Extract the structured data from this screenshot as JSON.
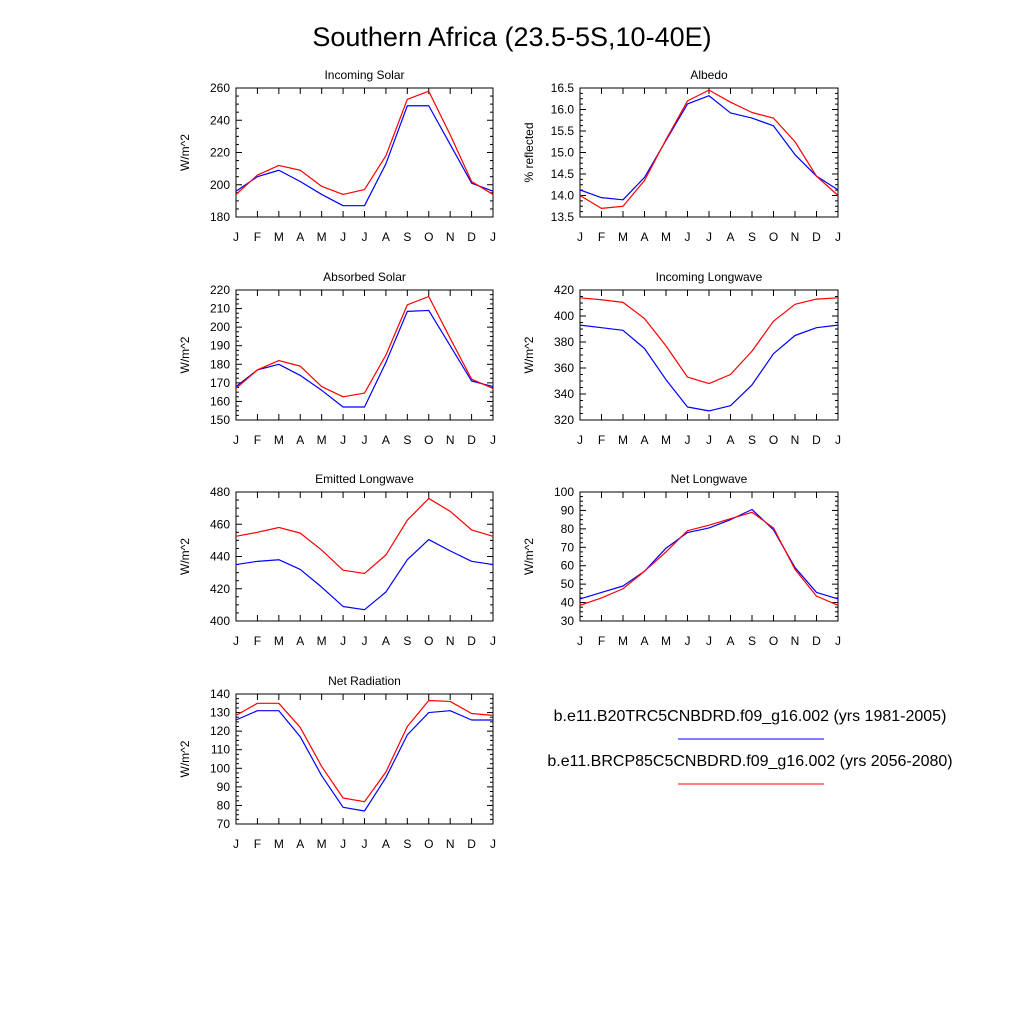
{
  "figure": {
    "title": "Southern Africa (23.5-5S,10-40E)"
  },
  "months": [
    "J",
    "F",
    "M",
    "A",
    "M",
    "J",
    "J",
    "A",
    "S",
    "O",
    "N",
    "D",
    "J"
  ],
  "legend": {
    "entries": [
      {
        "label": "b.e11.B20TRC5CNBDRD.f09_g16.002 (yrs 1981-2005)",
        "color": "#0000ff"
      },
      {
        "label": "b.e11.BRCP85C5CNBDRD.f09_g16.002 (yrs 2056-2080)",
        "color": "#ff0000"
      }
    ]
  },
  "chart_data": [
    {
      "type": "line",
      "title": "Incoming Solar",
      "ylabel": "W/m^2",
      "xlabel": "",
      "ylim": [
        180,
        260
      ],
      "yticks": [
        180,
        200,
        220,
        240,
        260
      ],
      "series": [
        {
          "name": "b.e11.B20TRC5CNBDRD.f09_g16.002 (yrs 1981-2005)",
          "color": "#0000ff",
          "values": [
            196,
            205,
            209,
            202,
            194,
            187,
            187,
            213,
            249,
            249,
            225,
            201,
            196
          ]
        },
        {
          "name": "b.e11.BRCP85C5CNBDRD.f09_g16.002 (yrs 2056-2080)",
          "color": "#ff0000",
          "values": [
            194,
            206,
            212,
            209,
            199,
            194,
            197,
            218,
            253,
            258,
            231,
            202,
            194
          ]
        }
      ]
    },
    {
      "type": "line",
      "title": "Albedo",
      "ylabel": "% reflected",
      "xlabel": "",
      "ylim": [
        13.5,
        16.5
      ],
      "yticks": [
        13.5,
        14.0,
        14.5,
        15.0,
        15.5,
        16.0,
        16.5
      ],
      "series": [
        {
          "name": "b.e11.B20TRC5CNBDRD.f09_g16.002 (yrs 1981-2005)",
          "color": "#0000ff",
          "values": [
            14.13,
            13.95,
            13.9,
            14.42,
            15.28,
            16.13,
            16.32,
            15.92,
            15.8,
            15.62,
            14.95,
            14.45,
            14.13
          ]
        },
        {
          "name": "b.e11.BRCP85C5CNBDRD.f09_g16.002 (yrs 2056-2080)",
          "color": "#ff0000",
          "values": [
            14.0,
            13.7,
            13.75,
            14.35,
            15.3,
            16.2,
            16.45,
            16.17,
            15.93,
            15.8,
            15.25,
            14.45,
            14.0
          ]
        }
      ]
    },
    {
      "type": "line",
      "title": "Absorbed Solar",
      "ylabel": "W/m^2",
      "xlabel": "",
      "ylim": [
        150,
        220
      ],
      "yticks": [
        150,
        160,
        170,
        180,
        190,
        200,
        210,
        220
      ],
      "series": [
        {
          "name": "b.e11.B20TRC5CNBDRD.f09_g16.002 (yrs 1981-2005)",
          "color": "#0000ff",
          "values": [
            168,
            177,
            180,
            174,
            166,
            157,
            157,
            181,
            208.5,
            209,
            190,
            171,
            168
          ]
        },
        {
          "name": "b.e11.BRCP85C5CNBDRD.f09_g16.002 (yrs 2056-2080)",
          "color": "#ff0000",
          "values": [
            167,
            177,
            182,
            179,
            168,
            162.5,
            164.5,
            185,
            212,
            216.5,
            194,
            172,
            167
          ]
        }
      ]
    },
    {
      "type": "line",
      "title": "Incoming Longwave",
      "ylabel": "W/m^2",
      "xlabel": "",
      "ylim": [
        320,
        420
      ],
      "yticks": [
        320,
        340,
        360,
        380,
        400,
        420
      ],
      "series": [
        {
          "name": "b.e11.B20TRC5CNBDRD.f09_g16.002 (yrs 1981-2005)",
          "color": "#0000ff",
          "values": [
            393,
            391,
            389,
            375,
            351,
            330,
            327,
            331,
            347,
            371,
            385,
            391,
            393
          ]
        },
        {
          "name": "b.e11.BRCP85C5CNBDRD.f09_g16.002 (yrs 2056-2080)",
          "color": "#ff0000",
          "values": [
            414,
            412.5,
            410.5,
            398,
            377,
            353,
            348,
            355,
            373,
            396,
            409,
            413,
            414
          ]
        }
      ]
    },
    {
      "type": "line",
      "title": "Emitted Longwave",
      "ylabel": "W/m^2",
      "xlabel": "",
      "ylim": [
        400,
        480
      ],
      "yticks": [
        400,
        420,
        440,
        460,
        480
      ],
      "series": [
        {
          "name": "b.e11.B20TRC5CNBDRD.f09_g16.002 (yrs 1981-2005)",
          "color": "#0000ff",
          "values": [
            435,
            437,
            438,
            432,
            421,
            409,
            407,
            418,
            438,
            450.5,
            443.5,
            437,
            435
          ]
        },
        {
          "name": "b.e11.BRCP85C5CNBDRD.f09_g16.002 (yrs 2056-2080)",
          "color": "#ff0000",
          "values": [
            452.5,
            455,
            458,
            454.5,
            444,
            431.5,
            429.5,
            441,
            462.5,
            476,
            468,
            456.5,
            452.5
          ]
        }
      ]
    },
    {
      "type": "line",
      "title": "Net Longwave",
      "ylabel": "W/m^2",
      "xlabel": "",
      "ylim": [
        30,
        100
      ],
      "yticks": [
        30,
        40,
        50,
        60,
        70,
        80,
        90,
        100
      ],
      "series": [
        {
          "name": "b.e11.B20TRC5CNBDRD.f09_g16.002 (yrs 1981-2005)",
          "color": "#0000ff",
          "values": [
            42,
            45.5,
            49,
            57,
            69.5,
            78,
            80.5,
            85,
            90.5,
            79.5,
            59,
            45.5,
            42
          ]
        },
        {
          "name": "b.e11.BRCP85C5CNBDRD.f09_g16.002 (yrs 2056-2080)",
          "color": "#ff0000",
          "values": [
            38.5,
            42.5,
            47.5,
            57,
            67.5,
            79,
            82,
            85.5,
            89,
            80.5,
            58,
            43.5,
            38.5
          ]
        }
      ]
    },
    {
      "type": "line",
      "title": "Net Radiation",
      "ylabel": "W/m^2",
      "xlabel": "",
      "ylim": [
        70,
        140
      ],
      "yticks": [
        70,
        80,
        90,
        100,
        110,
        120,
        130,
        140
      ],
      "series": [
        {
          "name": "b.e11.B20TRC5CNBDRD.f09_g16.002 (yrs 1981-2005)",
          "color": "#0000ff",
          "values": [
            126,
            131,
            131,
            117,
            96,
            79,
            77,
            95,
            118,
            130,
            131,
            126,
            126
          ]
        },
        {
          "name": "b.e11.BRCP85C5CNBDRD.f09_g16.002 (yrs 2056-2080)",
          "color": "#ff0000",
          "values": [
            128.5,
            135,
            135,
            122,
            101,
            84,
            82,
            98,
            122.5,
            136.5,
            136,
            129.5,
            128.5
          ]
        }
      ]
    }
  ]
}
